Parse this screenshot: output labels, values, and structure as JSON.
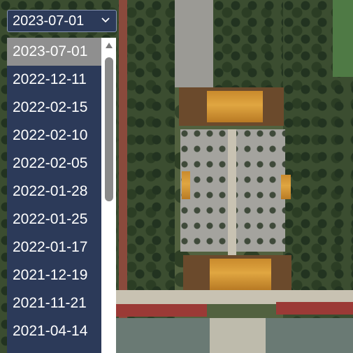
{
  "date_selector": {
    "selected": "2023-07-01",
    "options": [
      "2023-07-01",
      "2022-12-11",
      "2022-02-15",
      "2022-02-10",
      "2022-02-05",
      "2022-01-28",
      "2022-01-25",
      "2022-01-17",
      "2021-12-19",
      "2021-11-21",
      "2021-04-14"
    ]
  },
  "icons": {
    "chevron": "chevron-down-icon",
    "scroll_up": "scroll-up-arrow-icon"
  },
  "colors": {
    "dropdown_bg": "#2c3a59",
    "selected_option_bg": "#8f8f8f",
    "text": "#ffffff"
  }
}
